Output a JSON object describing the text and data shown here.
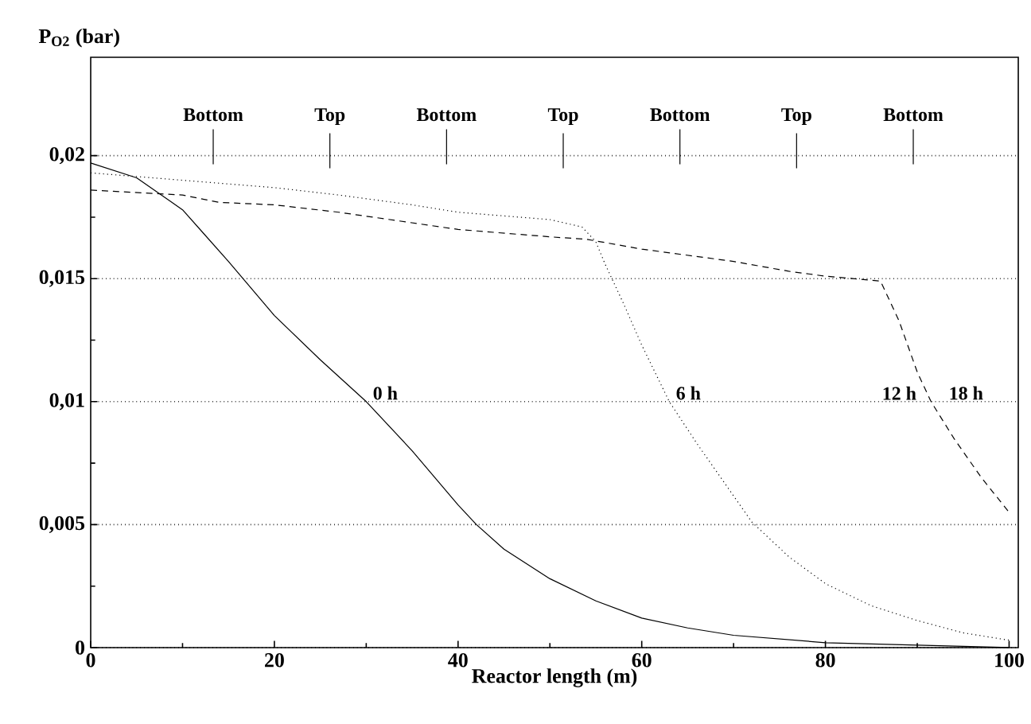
{
  "chart_data": {
    "type": "line",
    "xlabel": "Reactor length (m)",
    "ylabel": "P$_{O2}$ (bar)",
    "x": [
      0,
      5,
      10,
      15,
      20,
      25,
      30,
      35,
      40,
      42,
      45,
      50,
      55,
      60,
      65,
      70,
      80,
      90,
      100
    ],
    "series": [
      {
        "name": "0 h",
        "color": "#000000",
        "line_style": "solid",
        "values": [
          0.0197,
          0.0191,
          0.0178,
          0.0157,
          0.0135,
          0.0117,
          0.01,
          0.008,
          0.0058,
          0.005,
          0.004,
          0.0028,
          0.0019,
          0.0012,
          0.0008,
          0.0005,
          0.0002,
          0.0001,
          0.0
        ]
      },
      {
        "name": "6 h",
        "color": "#000000",
        "line_style": "dotted",
        "x": [
          0,
          10,
          20,
          27,
          35,
          40,
          50,
          53.5,
          55,
          56,
          58,
          60,
          63,
          66,
          69,
          72,
          76,
          80,
          85,
          90,
          95,
          100
        ],
        "values": [
          0.0193,
          0.019,
          0.0187,
          0.0184,
          0.018,
          0.0177,
          0.0174,
          0.0171,
          0.0165,
          0.0156,
          0.014,
          0.0123,
          0.01,
          0.0083,
          0.0067,
          0.0051,
          0.0037,
          0.0026,
          0.0017,
          0.0011,
          0.0006,
          0.0003
        ]
      },
      {
        "name": "12 h",
        "color": "#000000",
        "line_style": "dashed",
        "x": [
          0,
          10,
          14,
          20,
          27,
          40,
          50,
          54,
          60,
          70,
          76,
          80,
          86,
          88,
          90,
          91.5,
          94,
          97,
          100
        ],
        "values": [
          0.0186,
          0.0184,
          0.0181,
          0.018,
          0.0177,
          0.017,
          0.0167,
          0.0166,
          0.0162,
          0.0157,
          0.0153,
          0.0151,
          0.0149,
          0.0133,
          0.0112,
          0.01,
          0.0085,
          0.0069,
          0.0055
        ]
      }
    ],
    "xlim": [
      0,
      101
    ],
    "ylim": [
      0,
      0.024
    ],
    "xticks": [
      0,
      20,
      40,
      60,
      80,
      100
    ],
    "yticks": [
      0,
      {
        "value": 0.005,
        "label": "0,005"
      },
      {
        "value": 0.01,
        "label": "0,01"
      },
      {
        "value": 0.015,
        "label": "0,015"
      },
      {
        "value": 0.02,
        "label": "0,02"
      }
    ],
    "grid": "y",
    "annotations": [
      "Bottom",
      "Top",
      "Bottom",
      "Top",
      "Bottom",
      "Top",
      "Bottom",
      "18 h"
    ]
  }
}
